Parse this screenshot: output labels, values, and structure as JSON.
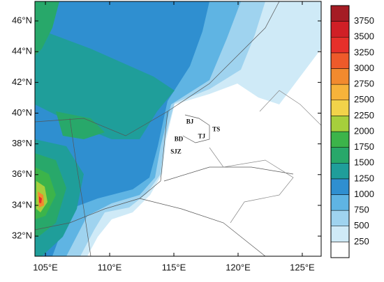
{
  "map": {
    "lonlim": [
      104.18,
      126.47
    ],
    "latlim": [
      30.69,
      47.27
    ],
    "lon_ticks": [
      {
        "value": 105,
        "label": "105°E"
      },
      {
        "value": 110,
        "label": "110°E"
      },
      {
        "value": 115,
        "label": "115°E"
      },
      {
        "value": 120,
        "label": "120°E"
      },
      {
        "value": 125,
        "label": "125°E"
      }
    ],
    "lat_ticks": [
      {
        "value": 32,
        "label": "32°N"
      },
      {
        "value": 34,
        "label": "34°N"
      },
      {
        "value": 36,
        "label": "36°N"
      },
      {
        "value": 38,
        "label": "38°N"
      },
      {
        "value": 40,
        "label": "40°N"
      },
      {
        "value": 42,
        "label": "42°N"
      },
      {
        "value": 44,
        "label": "44°N"
      },
      {
        "value": 46,
        "label": "46°N"
      }
    ],
    "cities": [
      {
        "label": "BJ",
        "lon": 116.25,
        "lat": 39.42
      },
      {
        "label": "TS",
        "lon": 118.3,
        "lat": 38.92
      },
      {
        "label": "TJ",
        "lon": 117.17,
        "lat": 38.47
      },
      {
        "label": "BD",
        "lon": 115.38,
        "lat": 38.29
      },
      {
        "label": "SJZ",
        "lon": 115.16,
        "lat": 37.47
      }
    ],
    "colorbar": {
      "levels": [
        250,
        500,
        750,
        1000,
        1250,
        1500,
        1750,
        2000,
        2250,
        2500,
        2750,
        3000,
        3250,
        3500,
        3750
      ],
      "colors": [
        "#ffffff",
        "#cfeaf7",
        "#9fd3ef",
        "#5fb4e3",
        "#2f8fd0",
        "#1f9e9a",
        "#28a86a",
        "#3cb44a",
        "#a6cf3c",
        "#f2d34a",
        "#f7b33a",
        "#f28a2e",
        "#ee5a2a",
        "#e6302a",
        "#d01f26",
        "#a51c24"
      ]
    }
  }
}
